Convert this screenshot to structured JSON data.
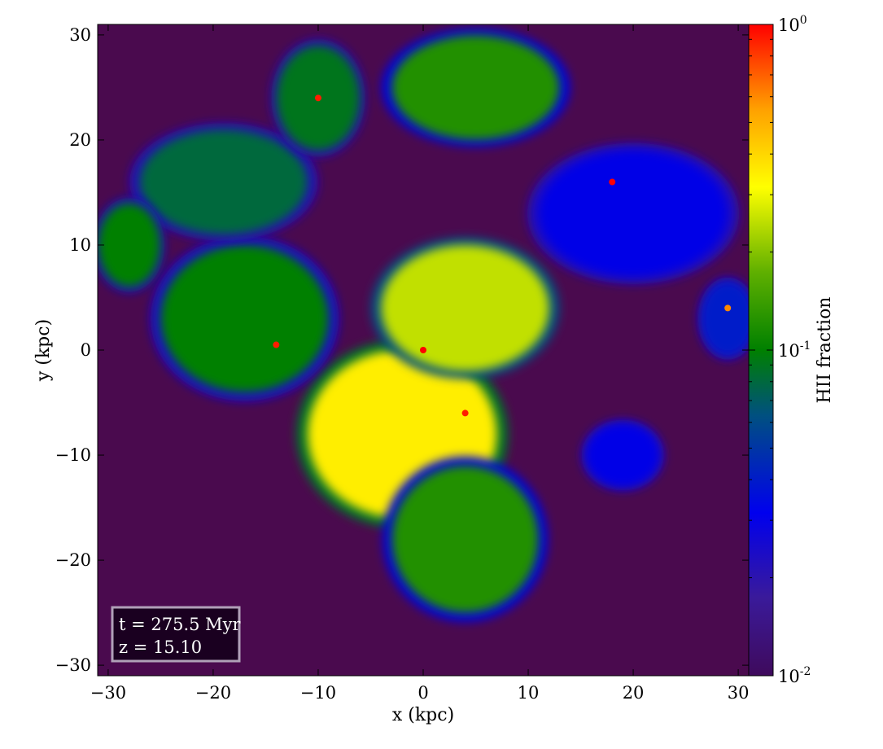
{
  "chart_data": {
    "type": "heatmap",
    "title": "",
    "xlabel": "x  (kpc)",
    "ylabel": "y  (kpc)",
    "xlim": [
      -31,
      31
    ],
    "ylim": [
      -31,
      31
    ],
    "x_ticks": [
      -30,
      -20,
      -10,
      0,
      10,
      20,
      30
    ],
    "y_ticks": [
      -30,
      -20,
      -10,
      0,
      10,
      20,
      30
    ],
    "x_tick_labels": [
      "−30",
      "−20",
      "−10",
      "0",
      "10",
      "20",
      "30"
    ],
    "y_tick_labels": [
      "−30",
      "−20",
      "−10",
      "0",
      "10",
      "20",
      "30"
    ],
    "grid": false,
    "colorbar": {
      "label": "HII fraction",
      "scale": "log",
      "range": [
        0.01,
        1
      ],
      "tick_values": [
        0.01,
        0.1,
        1
      ],
      "tick_labels": [
        {
          "base": "10",
          "exp": "-2"
        },
        {
          "base": "10",
          "exp": "-1"
        },
        {
          "base": "10",
          "exp": "0"
        }
      ],
      "colormap": "purple-blue-green-yellow-orange-red"
    },
    "background_value": 0.01,
    "annotation": {
      "line1": "t = 275.5 Myr",
      "line2": "z = 15.10",
      "location": "bottom-left"
    },
    "regions": [
      {
        "name": "central-ionized-bubble",
        "cx": -2,
        "cy": -8,
        "rx": 9,
        "ry": 8,
        "value": 0.35
      },
      {
        "name": "northeast-bubble",
        "cx": 4,
        "cy": 4,
        "rx": 8,
        "ry": 6,
        "value": 0.25
      },
      {
        "name": "southern-plume",
        "cx": 4,
        "cy": -18,
        "rx": 7,
        "ry": 7,
        "value": 0.12
      },
      {
        "name": "western-lobe",
        "cx": -17,
        "cy": 3,
        "rx": 8,
        "ry": 7,
        "value": 0.1
      },
      {
        "name": "northwest-arc",
        "cx": -19,
        "cy": 16,
        "rx": 8,
        "ry": 5,
        "value": 0.08
      },
      {
        "name": "north-bubble",
        "cx": 5,
        "cy": 25,
        "rx": 8,
        "ry": 5,
        "value": 0.12
      },
      {
        "name": "north-cluster",
        "cx": -10,
        "cy": 24,
        "rx": 4,
        "ry": 5,
        "value": 0.09
      },
      {
        "name": "far-west-lobe",
        "cx": -28,
        "cy": 10,
        "rx": 3,
        "ry": 4,
        "value": 0.1
      },
      {
        "name": "east-halo",
        "cx": 20,
        "cy": 13,
        "rx": 9,
        "ry": 6,
        "value": 0.03
      },
      {
        "name": "far-east-blob",
        "cx": 29,
        "cy": 3,
        "rx": 2.5,
        "ry": 3.5,
        "value": 0.04
      },
      {
        "name": "southeast-blob",
        "cx": 19,
        "cy": -10,
        "rx": 3.5,
        "ry": 3,
        "value": 0.03
      }
    ],
    "hotspots": [
      {
        "x": 18,
        "y": 16,
        "value": 1.0
      },
      {
        "x": -10,
        "y": 24,
        "value": 0.9
      },
      {
        "x": 0,
        "y": 0,
        "value": 1.0
      },
      {
        "x": 4,
        "y": -6,
        "value": 0.9
      },
      {
        "x": -14,
        "y": 0.5,
        "value": 0.9
      },
      {
        "x": 29,
        "y": 4,
        "value": 0.6
      }
    ]
  }
}
